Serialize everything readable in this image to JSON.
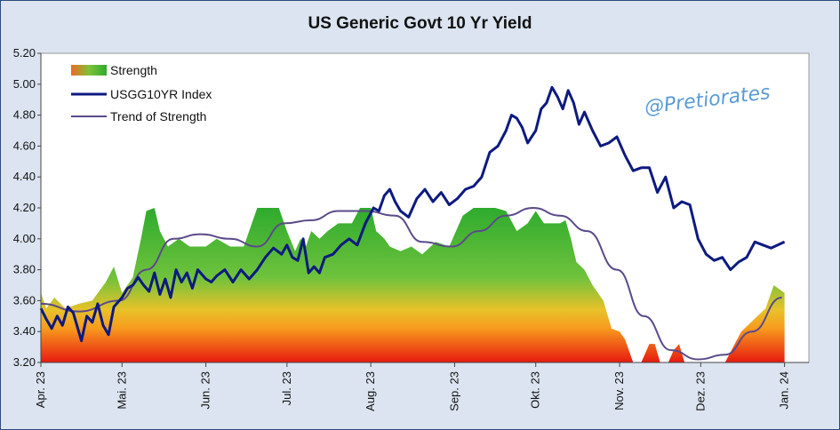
{
  "chart_data": {
    "type": "area",
    "title": "US Generic Govt 10 Yr Yield",
    "watermark": "@Pretiorates",
    "xlabel": "",
    "ylabel": "",
    "ylim": [
      3.2,
      5.2
    ],
    "y_ticks": [
      "5.20",
      "5.00",
      "4.80",
      "4.60",
      "4.40",
      "4.20",
      "4.00",
      "3.80",
      "3.60",
      "3.40",
      "3.20"
    ],
    "x_ticks": [
      "Apr. 23",
      "Mai. 23",
      "Jun. 23",
      "Jul. 23",
      "Aug. 23",
      "Sep. 23",
      "Okt. 23",
      "Nov. 23",
      "Dez. 23",
      "Jan. 24"
    ],
    "xlim": [
      "2023-04-01",
      "2024-01-10"
    ],
    "grid": false,
    "legend_position": "top-left",
    "legend": [
      "Strength",
      "USGG10YR Index",
      "Trend of Strength"
    ],
    "colors": {
      "index": "#0d1a80",
      "trend": "#5b4a8a",
      "plot_bg": "#ffffff",
      "frame_bg": "#dbe4f0"
    },
    "series": [
      {
        "name": "Strength",
        "type": "area",
        "x": [
          "2023-04-01",
          "2023-04-03",
          "2023-04-06",
          "2023-04-10",
          "2023-04-15",
          "2023-04-20",
          "2023-04-25",
          "2023-04-28",
          "2023-05-01",
          "2023-05-05",
          "2023-05-08",
          "2023-05-10",
          "2023-05-13",
          "2023-05-15",
          "2023-05-18",
          "2023-05-22",
          "2023-05-26",
          "2023-06-01",
          "2023-06-05",
          "2023-06-10",
          "2023-06-15",
          "2023-06-20",
          "2023-06-24",
          "2023-06-28",
          "2023-07-01",
          "2023-07-04",
          "2023-07-06",
          "2023-07-08",
          "2023-07-10",
          "2023-07-13",
          "2023-07-16",
          "2023-07-20",
          "2023-07-25",
          "2023-07-28",
          "2023-08-01",
          "2023-08-03",
          "2023-08-06",
          "2023-08-08",
          "2023-08-12",
          "2023-08-16",
          "2023-08-20",
          "2023-08-25",
          "2023-08-30",
          "2023-09-04",
          "2023-09-08",
          "2023-09-12",
          "2023-09-16",
          "2023-09-20",
          "2023-09-24",
          "2023-09-28",
          "2023-10-01",
          "2023-10-04",
          "2023-10-07",
          "2023-10-10",
          "2023-10-12",
          "2023-10-14",
          "2023-10-16",
          "2023-10-19",
          "2023-10-22",
          "2023-10-26",
          "2023-10-29",
          "2023-11-01",
          "2023-11-03",
          "2023-11-06",
          "2023-11-09",
          "2023-11-12",
          "2023-11-14",
          "2023-11-16",
          "2023-11-19",
          "2023-11-21",
          "2023-11-23",
          "2023-11-25",
          "2023-11-28",
          "2023-12-01",
          "2023-12-04",
          "2023-12-07",
          "2023-12-10",
          "2023-12-13",
          "2023-12-16",
          "2023-12-19",
          "2023-12-22",
          "2023-12-25",
          "2023-12-28",
          "2024-01-01"
        ],
        "values": [
          3.65,
          3.55,
          3.62,
          3.55,
          3.58,
          3.6,
          3.72,
          3.82,
          3.65,
          3.75,
          4.0,
          4.18,
          4.2,
          4.05,
          3.95,
          4.0,
          3.95,
          3.95,
          4.0,
          3.95,
          3.95,
          4.2,
          4.2,
          4.2,
          4.05,
          3.92,
          4.0,
          3.95,
          4.05,
          4.0,
          4.05,
          4.1,
          4.1,
          4.2,
          4.2,
          4.05,
          4.0,
          3.95,
          3.92,
          3.95,
          3.9,
          3.98,
          3.95,
          4.15,
          4.2,
          4.2,
          4.2,
          4.18,
          4.05,
          4.1,
          4.18,
          4.1,
          4.1,
          4.1,
          4.12,
          4.0,
          3.85,
          3.8,
          3.7,
          3.6,
          3.42,
          3.4,
          3.35,
          3.2,
          3.2,
          3.32,
          3.32,
          3.2,
          3.2,
          3.28,
          3.32,
          3.2,
          3.2,
          3.2,
          3.2,
          3.2,
          3.2,
          3.3,
          3.4,
          3.45,
          3.5,
          3.55,
          3.7,
          3.65
        ]
      },
      {
        "name": "USGG10YR Index",
        "type": "line",
        "x": [
          "2023-04-01",
          "2023-04-03",
          "2023-04-05",
          "2023-04-07",
          "2023-04-09",
          "2023-04-11",
          "2023-04-13",
          "2023-04-16",
          "2023-04-18",
          "2023-04-20",
          "2023-04-22",
          "2023-04-24",
          "2023-04-26",
          "2023-04-28",
          "2023-05-01",
          "2023-05-03",
          "2023-05-05",
          "2023-05-07",
          "2023-05-09",
          "2023-05-11",
          "2023-05-13",
          "2023-05-15",
          "2023-05-17",
          "2023-05-19",
          "2023-05-21",
          "2023-05-23",
          "2023-05-25",
          "2023-05-27",
          "2023-05-29",
          "2023-06-01",
          "2023-06-03",
          "2023-06-05",
          "2023-06-08",
          "2023-06-11",
          "2023-06-14",
          "2023-06-17",
          "2023-06-20",
          "2023-06-23",
          "2023-06-26",
          "2023-06-29",
          "2023-07-01",
          "2023-07-03",
          "2023-07-05",
          "2023-07-07",
          "2023-07-09",
          "2023-07-11",
          "2023-07-13",
          "2023-07-15",
          "2023-07-18",
          "2023-07-21",
          "2023-07-24",
          "2023-07-27",
          "2023-07-30",
          "2023-08-02",
          "2023-08-04",
          "2023-08-06",
          "2023-08-08",
          "2023-08-10",
          "2023-08-12",
          "2023-08-15",
          "2023-08-18",
          "2023-08-21",
          "2023-08-24",
          "2023-08-27",
          "2023-08-30",
          "2023-09-02",
          "2023-09-05",
          "2023-09-08",
          "2023-09-11",
          "2023-09-14",
          "2023-09-17",
          "2023-09-20",
          "2023-09-22",
          "2023-09-24",
          "2023-09-26",
          "2023-09-28",
          "2023-10-01",
          "2023-10-03",
          "2023-10-05",
          "2023-10-07",
          "2023-10-09",
          "2023-10-11",
          "2023-10-13",
          "2023-10-15",
          "2023-10-17",
          "2023-10-19",
          "2023-10-22",
          "2023-10-25",
          "2023-10-28",
          "2023-10-31",
          "2023-11-03",
          "2023-11-06",
          "2023-11-09",
          "2023-11-12",
          "2023-11-15",
          "2023-11-18",
          "2023-11-21",
          "2023-11-24",
          "2023-11-27",
          "2023-11-30",
          "2023-12-03",
          "2023-12-06",
          "2023-12-09",
          "2023-12-12",
          "2023-12-15",
          "2023-12-18",
          "2023-12-21",
          "2023-12-24",
          "2023-12-27",
          "2024-01-01"
        ],
        "values": [
          3.55,
          3.48,
          3.42,
          3.5,
          3.44,
          3.56,
          3.52,
          3.34,
          3.5,
          3.46,
          3.58,
          3.44,
          3.38,
          3.56,
          3.62,
          3.68,
          3.7,
          3.75,
          3.7,
          3.66,
          3.78,
          3.64,
          3.74,
          3.62,
          3.8,
          3.72,
          3.78,
          3.68,
          3.8,
          3.74,
          3.72,
          3.76,
          3.8,
          3.72,
          3.8,
          3.74,
          3.8,
          3.88,
          3.94,
          3.9,
          3.96,
          3.88,
          3.86,
          4.0,
          3.78,
          3.82,
          3.78,
          3.88,
          3.9,
          3.96,
          4.0,
          3.96,
          4.1,
          4.2,
          4.18,
          4.28,
          4.32,
          4.24,
          4.18,
          4.14,
          4.26,
          4.32,
          4.24,
          4.3,
          4.22,
          4.26,
          4.32,
          4.34,
          4.4,
          4.56,
          4.6,
          4.7,
          4.8,
          4.78,
          4.72,
          4.62,
          4.7,
          4.84,
          4.88,
          4.98,
          4.92,
          4.84,
          4.96,
          4.88,
          4.74,
          4.82,
          4.7,
          4.6,
          4.62,
          4.66,
          4.54,
          4.44,
          4.46,
          4.46,
          4.3,
          4.4,
          4.2,
          4.24,
          4.22,
          4.0,
          3.9,
          3.86,
          3.88,
          3.8,
          3.85,
          3.88,
          3.98,
          3.96,
          3.94,
          3.98
        ]
      },
      {
        "name": "Trend of Strength",
        "type": "line",
        "x": [
          "2023-04-01",
          "2023-04-15",
          "2023-04-30",
          "2023-05-10",
          "2023-05-20",
          "2023-05-30",
          "2023-06-10",
          "2023-06-20",
          "2023-06-30",
          "2023-07-10",
          "2023-07-20",
          "2023-07-30",
          "2023-08-10",
          "2023-08-20",
          "2023-08-31",
          "2023-09-10",
          "2023-09-20",
          "2023-09-30",
          "2023-10-10",
          "2023-10-20",
          "2023-10-31",
          "2023-11-10",
          "2023-11-20",
          "2023-11-30",
          "2023-12-10",
          "2023-12-20",
          "2023-12-31"
        ],
        "values": [
          3.58,
          3.53,
          3.6,
          3.8,
          4.0,
          4.03,
          4.0,
          3.95,
          4.1,
          4.12,
          4.18,
          4.18,
          4.15,
          3.98,
          3.95,
          4.05,
          4.15,
          4.2,
          4.15,
          4.05,
          3.8,
          3.5,
          3.28,
          3.22,
          3.25,
          3.4,
          3.62
        ]
      }
    ]
  }
}
